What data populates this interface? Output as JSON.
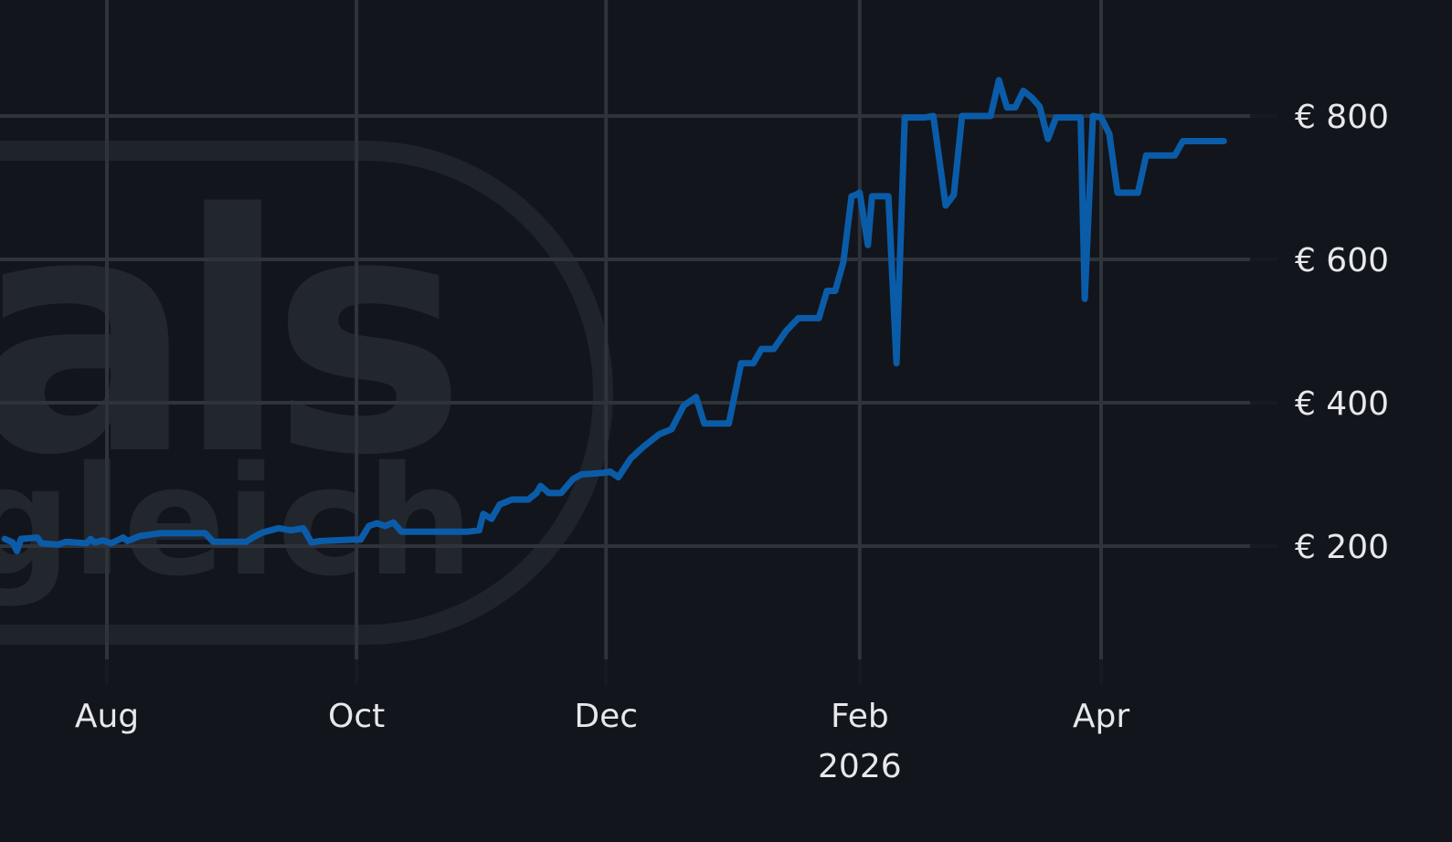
{
  "colors": {
    "background": "#12151c",
    "grid": "#2f333a",
    "line": "#0b5ca8",
    "text": "#e6e8ec",
    "watermark": "#22262d"
  },
  "watermark": {
    "text_main": "als",
    "text_sub": "gleich"
  },
  "chart_data": {
    "type": "line",
    "title": "",
    "xlabel": "",
    "ylabel": "",
    "x_tick_labels": [
      "Aug",
      "Oct",
      "Dec",
      "Feb",
      "Apr"
    ],
    "x_tick_dates": [
      "2025-08-01",
      "2025-10-01",
      "2025-12-01",
      "2026-02-01",
      "2026-04-01"
    ],
    "x_year_label": "2026",
    "y_tick_labels": [
      "€ 200",
      "€ 400",
      "€ 600",
      "€ 800"
    ],
    "y_tick_values": [
      200,
      400,
      600,
      800
    ],
    "ylim": [
      0,
      900
    ],
    "xlim": [
      "2025-07-07",
      "2026-05-20"
    ],
    "grid": true,
    "y_axis_position": "right",
    "series": [
      {
        "values": [
          [
            "2025-07-07",
            210
          ],
          [
            "2025-07-09",
            205
          ],
          [
            "2025-07-10",
            193
          ],
          [
            "2025-07-11",
            210
          ],
          [
            "2025-07-15",
            212
          ],
          [
            "2025-07-16",
            204
          ],
          [
            "2025-07-20",
            202
          ],
          [
            "2025-07-22",
            206
          ],
          [
            "2025-07-27",
            204
          ],
          [
            "2025-07-28",
            210
          ],
          [
            "2025-07-29",
            205
          ],
          [
            "2025-07-31",
            208
          ],
          [
            "2025-08-02",
            204
          ],
          [
            "2025-08-05",
            212
          ],
          [
            "2025-08-06",
            207
          ],
          [
            "2025-08-09",
            214
          ],
          [
            "2025-08-14",
            218
          ],
          [
            "2025-08-25",
            218
          ],
          [
            "2025-08-27",
            206
          ],
          [
            "2025-09-04",
            206
          ],
          [
            "2025-09-06",
            213
          ],
          [
            "2025-09-08",
            219
          ],
          [
            "2025-09-12",
            225
          ],
          [
            "2025-09-15",
            222
          ],
          [
            "2025-09-18",
            225
          ],
          [
            "2025-09-20",
            205
          ],
          [
            "2025-09-22",
            207
          ],
          [
            "2025-09-30",
            209
          ],
          [
            "2025-10-02",
            209
          ],
          [
            "2025-10-04",
            228
          ],
          [
            "2025-10-06",
            232
          ],
          [
            "2025-10-08",
            228
          ],
          [
            "2025-10-10",
            233
          ],
          [
            "2025-10-12",
            220
          ],
          [
            "2025-10-28",
            220
          ],
          [
            "2025-10-31",
            222
          ],
          [
            "2025-11-01",
            245
          ],
          [
            "2025-11-03",
            238
          ],
          [
            "2025-11-05",
            258
          ],
          [
            "2025-11-08",
            265
          ],
          [
            "2025-11-12",
            265
          ],
          [
            "2025-11-14",
            274
          ],
          [
            "2025-11-15",
            284
          ],
          [
            "2025-11-17",
            274
          ],
          [
            "2025-11-20",
            274
          ],
          [
            "2025-11-23",
            294
          ],
          [
            "2025-11-25",
            300
          ],
          [
            "2025-11-30",
            302
          ],
          [
            "2025-12-02",
            304
          ],
          [
            "2025-12-04",
            296
          ],
          [
            "2025-12-07",
            322
          ],
          [
            "2025-12-10",
            338
          ],
          [
            "2025-12-14",
            356
          ],
          [
            "2025-12-17",
            363
          ],
          [
            "2025-12-20",
            396
          ],
          [
            "2025-12-23",
            408
          ],
          [
            "2025-12-25",
            371
          ],
          [
            "2025-12-31",
            371
          ],
          [
            "2026-01-03",
            455
          ],
          [
            "2026-01-06",
            455
          ],
          [
            "2026-01-08",
            475
          ],
          [
            "2026-01-11",
            475
          ],
          [
            "2026-01-14",
            500
          ],
          [
            "2026-01-17",
            518
          ],
          [
            "2026-01-22",
            518
          ],
          [
            "2026-01-24",
            556
          ],
          [
            "2026-01-26",
            556
          ],
          [
            "2026-01-28",
            596
          ],
          [
            "2026-01-30",
            688
          ],
          [
            "2026-01-31",
            690
          ],
          [
            "2026-02-01",
            693
          ],
          [
            "2026-02-03",
            620
          ],
          [
            "2026-02-04",
            688
          ],
          [
            "2026-02-08",
            688
          ],
          [
            "2026-02-10",
            455
          ],
          [
            "2026-02-12",
            798
          ],
          [
            "2026-02-17",
            798
          ],
          [
            "2026-02-19",
            800
          ],
          [
            "2026-02-22",
            675
          ],
          [
            "2026-02-24",
            690
          ],
          [
            "2026-02-26",
            800
          ],
          [
            "2026-03-05",
            800
          ],
          [
            "2026-03-07",
            850
          ],
          [
            "2026-03-09",
            812
          ],
          [
            "2026-03-11",
            812
          ],
          [
            "2026-03-13",
            835
          ],
          [
            "2026-03-15",
            826
          ],
          [
            "2026-03-17",
            813
          ],
          [
            "2026-03-19",
            768
          ],
          [
            "2026-03-21",
            798
          ],
          [
            "2026-03-27",
            798
          ],
          [
            "2026-03-28",
            545
          ],
          [
            "2026-03-30",
            800
          ],
          [
            "2026-04-01",
            798
          ],
          [
            "2026-04-03",
            775
          ],
          [
            "2026-04-05",
            693
          ],
          [
            "2026-04-10",
            693
          ],
          [
            "2026-04-12",
            745
          ],
          [
            "2026-04-19",
            745
          ],
          [
            "2026-04-21",
            765
          ],
          [
            "2026-04-24",
            765
          ],
          [
            "2026-04-25",
            765
          ],
          [
            "2026-04-27",
            765
          ],
          [
            "2026-04-29",
            765
          ],
          [
            "2026-05-01",
            765
          ],
          [
            "2026-05-01",
            765
          ],
          [
            "2026-05-01",
            765
          ],
          [
            "2026-05-01",
            765
          ]
        ]
      }
    ]
  }
}
